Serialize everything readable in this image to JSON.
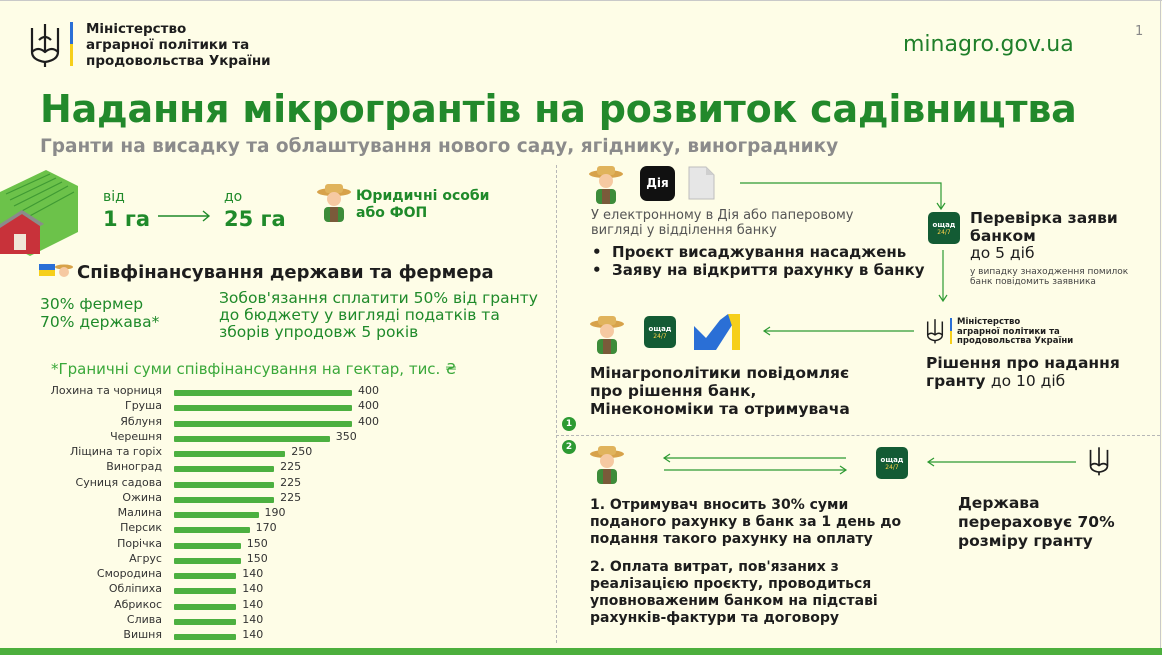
{
  "header": {
    "ministry_lines": [
      "Міністерство",
      "аграрної політики та",
      "продовольства України"
    ],
    "site": "minagro.gov.ua",
    "page_number": "1"
  },
  "title": "Надання мікрогрантів на розвиток садівництва",
  "subtitle": "Гранти на висадку та облаштування нового саду, ягіднику, винограднику",
  "area": {
    "from_label": "від",
    "from_value": "1 га",
    "to_label": "до",
    "to_value": "25 га"
  },
  "entities": [
    "Юридичні особи",
    "або ФОП"
  ],
  "cofinancing": {
    "title": "Співфінансування держави та фермера",
    "shares": [
      "30% фермер",
      "70% держава*"
    ],
    "obligation_lines": [
      "Зобов'язання сплатити 50% від гранту",
      "до бюджету у вигляді податків та",
      "зборів упродовж 5 років"
    ]
  },
  "limits_title": "*Граничні суми співфінансування на гектар, тис. ₴",
  "chart_data": {
    "type": "bar",
    "orientation": "horizontal",
    "title": "*Граничні суми співфінансування на гектар, тис. ₴",
    "categories": [
      "Лохина та чорниця",
      "Груша",
      "Яблуня",
      "Черешня",
      "Ліщина та горіх",
      "Виноград",
      "Суниця садова",
      "Ожина",
      "Малина",
      "Персик",
      "Порічка",
      "Агрус",
      "Смородина",
      "Обліпиха",
      "Абрикос",
      "Слива",
      "Вишня"
    ],
    "values": [
      400,
      400,
      400,
      350,
      250,
      225,
      225,
      225,
      190,
      170,
      150,
      150,
      140,
      140,
      140,
      140,
      140
    ],
    "xlim": [
      0,
      400
    ],
    "grid": false,
    "bar_color": "#4cb040"
  },
  "process": {
    "dia_label": "Дія",
    "application_note": [
      "У електронному в Дія або паперовому",
      "вигляді у відділення банку"
    ],
    "documents": [
      "Проєкт висаджування насаджень",
      "Заяву на відкриття рахунку в банку"
    ],
    "bank_check": {
      "title_lines": [
        "Перевірка заяви",
        "банком"
      ],
      "term": "до 5 діб",
      "note_lines": [
        "у випадку знаходження помилок",
        "банк повідомить заявника"
      ]
    },
    "ministry_small_lines": [
      "Міністерство",
      "аграрної політики та",
      "продовольства України"
    ],
    "decision": {
      "title_lines": [
        "Рішення про надання",
        "гранту"
      ],
      "term": "до 10 діб"
    },
    "notify_lines": [
      "Мінагрополітики повідомляє",
      "про рішення банк,",
      "Мінекономіки та отримувача"
    ],
    "step_numbers": [
      "1",
      "2"
    ],
    "payment_steps": {
      "step1_lines": [
        "1. Отримувач вносить  30% суми",
        "поданого рахунку в банк за 1 день до",
        "подання такого рахунку на оплату"
      ],
      "step2_lines": [
        "2. Оплата витрат, пов'язаних з",
        "реалізацією проєкту, проводиться",
        "уповноваженим банком на підставі",
        "рахунків-фактури та договору"
      ]
    },
    "state_lines": [
      "Держава",
      "перераховує 70%",
      "розміру гранту"
    ],
    "oschad_label": [
      "ощад",
      "24/7"
    ]
  },
  "colors": {
    "title_green": "#22892b",
    "accent_green": "#1f8a2a",
    "bar_green": "#4cb040",
    "oschad_dark": "#135b34",
    "flag_blue": "#2a6fd6",
    "flag_yellow": "#f6cf1a",
    "background": "#fefde7"
  }
}
